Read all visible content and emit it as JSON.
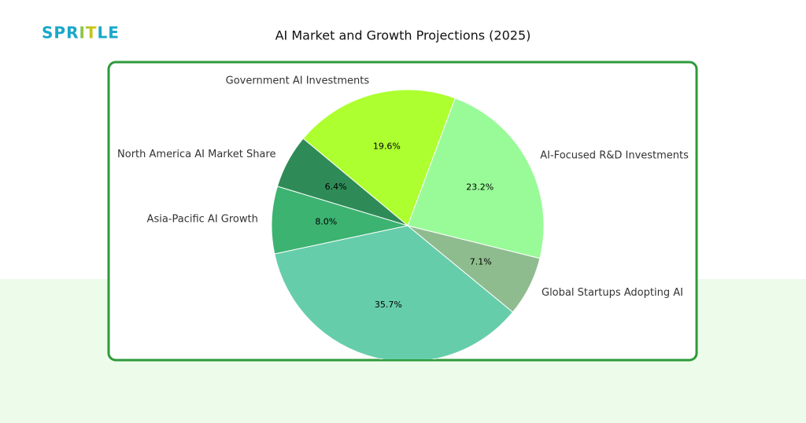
{
  "logo": "SPRITLE",
  "chart_data": {
    "type": "pie",
    "title": "AI Market and Growth Projections (2025)",
    "categories": [
      "Government AI Investments",
      "North America AI Market Share",
      "Asia-Pacific AI Growth",
      null,
      "Global Startups Adopting AI",
      "AI-Focused R&D Investments"
    ],
    "values": [
      19.6,
      6.4,
      8.0,
      35.7,
      7.1,
      23.2
    ],
    "value_labels": [
      "19.6%",
      "6.4%",
      "8.0%",
      "35.7%",
      "7.1%",
      "23.2%"
    ],
    "colors": [
      "#adff2f",
      "#2e8b57",
      "#3cb371",
      "#66cdaa",
      "#8fbc8f",
      "#98fb98"
    ]
  }
}
